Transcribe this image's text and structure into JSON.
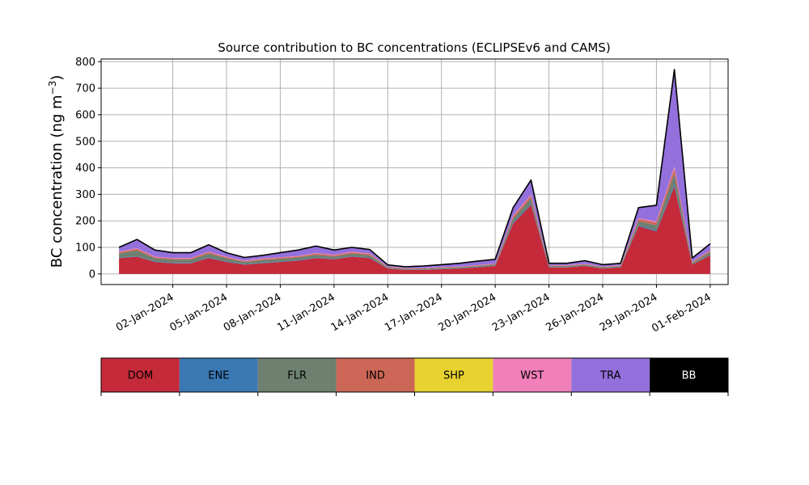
{
  "chart_data": {
    "type": "area",
    "title": "Source contribution to BC concentrations (ECLIPSEv6 and CAMS)",
    "ylabel": "BC concentration (ng m",
    "ylabel_superscript": "−3",
    "ylabel_suffix": ")",
    "ylim": [
      -40,
      810
    ],
    "xlim": [
      "2023-12-29",
      "2024-02-02"
    ],
    "grid": true,
    "stacked": true,
    "x_ticks": [
      "02-Jan-2024",
      "05-Jan-2024",
      "08-Jan-2024",
      "11-Jan-2024",
      "14-Jan-2024",
      "17-Jan-2024",
      "20-Jan-2024",
      "23-Jan-2024",
      "26-Jan-2024",
      "29-Jan-2024",
      "01-Feb-2024"
    ],
    "y_ticks": [
      0,
      100,
      200,
      300,
      400,
      500,
      600,
      700,
      800
    ],
    "x": [
      "2023-12-30",
      "2023-12-31",
      "2024-01-01",
      "2024-01-02",
      "2024-01-03",
      "2024-01-04",
      "2024-01-05",
      "2024-01-06",
      "2024-01-07",
      "2024-01-08",
      "2024-01-09",
      "2024-01-10",
      "2024-01-11",
      "2024-01-12",
      "2024-01-13",
      "2024-01-14",
      "2024-01-15",
      "2024-01-16",
      "2024-01-17",
      "2024-01-18",
      "2024-01-19",
      "2024-01-20",
      "2024-01-21",
      "2024-01-22",
      "2024-01-23",
      "2024-01-24",
      "2024-01-25",
      "2024-01-26",
      "2024-01-27",
      "2024-01-28",
      "2024-01-29",
      "2024-01-30",
      "2024-01-31",
      "2024-02-01"
    ],
    "series": [
      {
        "name": "DOM",
        "color": "#c42a3a",
        "values": [
          60,
          65,
          45,
          40,
          40,
          60,
          45,
          35,
          40,
          45,
          50,
          60,
          55,
          65,
          60,
          20,
          15,
          15,
          18,
          20,
          25,
          30,
          190,
          260,
          25,
          25,
          30,
          20,
          25,
          180,
          160,
          330,
          35,
          70
        ]
      },
      {
        "name": "ENE",
        "color": "#3a78b4",
        "values": [
          2,
          2,
          2,
          2,
          2,
          2,
          2,
          2,
          2,
          2,
          2,
          2,
          2,
          2,
          2,
          1,
          1,
          1,
          1,
          1,
          1,
          1,
          4,
          5,
          1,
          1,
          1,
          1,
          1,
          4,
          4,
          8,
          1,
          2
        ]
      },
      {
        "name": "FLR",
        "color": "#6e8070",
        "values": [
          15,
          22,
          12,
          12,
          12,
          15,
          12,
          8,
          10,
          10,
          10,
          10,
          8,
          10,
          8,
          4,
          3,
          3,
          4,
          4,
          4,
          5,
          15,
          20,
          4,
          4,
          4,
          4,
          4,
          15,
          20,
          40,
          6,
          10
        ]
      },
      {
        "name": "IND",
        "color": "#cc6656",
        "values": [
          5,
          6,
          4,
          4,
          4,
          5,
          4,
          3,
          4,
          4,
          4,
          5,
          5,
          5,
          5,
          2,
          2,
          2,
          2,
          2,
          2,
          2,
          8,
          10,
          2,
          2,
          2,
          2,
          2,
          8,
          10,
          20,
          3,
          5
        ]
      },
      {
        "name": "SHP",
        "color": "#e8d230",
        "values": [
          0,
          0,
          0,
          0,
          0,
          0,
          0,
          0,
          0,
          0,
          0,
          0,
          0,
          0,
          0,
          0,
          0,
          0,
          0,
          0,
          0,
          0,
          0,
          0,
          0,
          0,
          0,
          0,
          0,
          0,
          0,
          0,
          0,
          0
        ]
      },
      {
        "name": "WST",
        "color": "#f07fba",
        "values": [
          2,
          2,
          2,
          2,
          2,
          2,
          2,
          2,
          2,
          2,
          2,
          2,
          2,
          2,
          2,
          1,
          1,
          1,
          1,
          1,
          1,
          1,
          3,
          4,
          1,
          1,
          1,
          1,
          1,
          3,
          4,
          8,
          1,
          2
        ]
      },
      {
        "name": "TRA",
        "color": "#9370db",
        "values": [
          16,
          33,
          25,
          20,
          20,
          26,
          15,
          12,
          12,
          17,
          22,
          26,
          18,
          16,
          15,
          6,
          5,
          8,
          9,
          12,
          15,
          16,
          30,
          55,
          7,
          7,
          12,
          7,
          7,
          40,
          61,
          364,
          14,
          25
        ]
      },
      {
        "name": "BB",
        "color": "#000000",
        "values": [
          0,
          0,
          0,
          0,
          0,
          0,
          0,
          0,
          0,
          0,
          0,
          0,
          0,
          0,
          0,
          0,
          0,
          0,
          0,
          0,
          0,
          0,
          0,
          0,
          0,
          0,
          0,
          0,
          0,
          0,
          0,
          0,
          0,
          0
        ]
      }
    ],
    "total": [
      100,
      130,
      90,
      80,
      80,
      110,
      80,
      62,
      70,
      80,
      90,
      105,
      90,
      100,
      92,
      34,
      27,
      30,
      35,
      40,
      48,
      55,
      250,
      354,
      40,
      40,
      50,
      35,
      40,
      250,
      259,
      770,
      60,
      114
    ],
    "legend": {
      "placement": "bottom colorbar",
      "items": [
        {
          "label": "DOM",
          "color": "#c42a3a",
          "text_color": "#000000"
        },
        {
          "label": "ENE",
          "color": "#3a78b4",
          "text_color": "#000000"
        },
        {
          "label": "FLR",
          "color": "#6e8070",
          "text_color": "#000000"
        },
        {
          "label": "IND",
          "color": "#cc6656",
          "text_color": "#000000"
        },
        {
          "label": "SHP",
          "color": "#e8d230",
          "text_color": "#000000"
        },
        {
          "label": "WST",
          "color": "#f07fba",
          "text_color": "#000000"
        },
        {
          "label": "TRA",
          "color": "#9370db",
          "text_color": "#000000"
        },
        {
          "label": "BB",
          "color": "#000000",
          "text_color": "#ffffff"
        }
      ]
    }
  }
}
